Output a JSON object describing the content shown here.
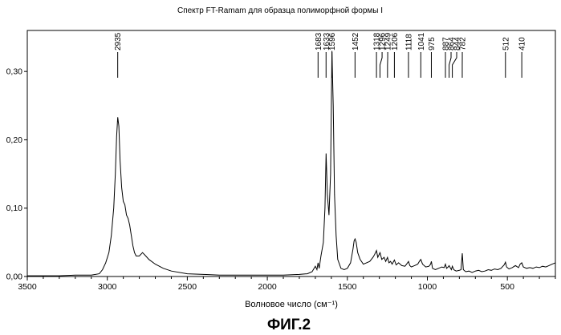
{
  "chart_data": {
    "type": "line",
    "title": "Спектр FT-Ramam для образца полиморфной формы I",
    "xlabel": "Волновое число (см⁻¹)",
    "ylabel": "",
    "xlim": [
      3500,
      200
    ],
    "ylim": [
      0,
      0.36
    ],
    "x_ticks": [
      3500,
      3000,
      2500,
      2000,
      1500,
      1000,
      500
    ],
    "x_tick_labels": [
      "3500",
      "3000",
      "2500",
      "2000",
      "1500",
      "1000",
      "500"
    ],
    "y_ticks": [
      0,
      0.1,
      0.2,
      0.3
    ],
    "y_tick_labels": [
      "0,00",
      "0,10",
      "0,20",
      "0,30"
    ],
    "grid": false,
    "peaks": [
      {
        "x": 2935,
        "label": "2935"
      },
      {
        "x": 1683,
        "label": "1683"
      },
      {
        "x": 1633,
        "label": "1633"
      },
      {
        "x": 1596,
        "label": "1596"
      },
      {
        "x": 1452,
        "label": "1452"
      },
      {
        "x": 1318,
        "label": "1318"
      },
      {
        "x": 1296,
        "label": "1296"
      },
      {
        "x": 1249,
        "label": "1249"
      },
      {
        "x": 1206,
        "label": "1206"
      },
      {
        "x": 1118,
        "label": "1118"
      },
      {
        "x": 1041,
        "label": "1041"
      },
      {
        "x": 975,
        "label": "975"
      },
      {
        "x": 887,
        "label": "887"
      },
      {
        "x": 864,
        "label": "864"
      },
      {
        "x": 844,
        "label": "844"
      },
      {
        "x": 782,
        "label": "782"
      },
      {
        "x": 512,
        "label": "512"
      },
      {
        "x": 410,
        "label": "410"
      }
    ],
    "series": [
      {
        "x": [
          3500,
          3400,
          3300,
          3200,
          3100,
          3050,
          3030,
          3010,
          2990,
          2975,
          2960,
          2950,
          2942,
          2935,
          2928,
          2920,
          2910,
          2900,
          2890,
          2880,
          2870,
          2860,
          2850,
          2840,
          2830,
          2820,
          2800,
          2780,
          2760,
          2740,
          2700,
          2650,
          2600,
          2500,
          2400,
          2300,
          2200,
          2100,
          2000,
          1900,
          1800,
          1750,
          1720,
          1700,
          1690,
          1683,
          1676,
          1665,
          1650,
          1640,
          1633,
          1625,
          1615,
          1605,
          1596,
          1588,
          1580,
          1570,
          1560,
          1540,
          1520,
          1500,
          1480,
          1465,
          1458,
          1452,
          1445,
          1435,
          1420,
          1400,
          1380,
          1360,
          1340,
          1330,
          1318,
          1310,
          1296,
          1285,
          1270,
          1260,
          1249,
          1240,
          1230,
          1220,
          1206,
          1195,
          1180,
          1160,
          1140,
          1130,
          1118,
          1110,
          1100,
          1080,
          1060,
          1050,
          1041,
          1030,
          1010,
          990,
          980,
          975,
          968,
          950,
          930,
          910,
          895,
          887,
          880,
          870,
          864,
          855,
          850,
          844,
          835,
          820,
          800,
          790,
          782,
          775,
          760,
          740,
          720,
          700,
          680,
          660,
          640,
          620,
          600,
          580,
          560,
          540,
          520,
          512,
          505,
          490,
          470,
          450,
          430,
          420,
          410,
          400,
          380,
          360,
          340,
          320,
          300,
          280,
          260,
          240,
          220,
          200
        ],
        "values": [
          0.001,
          0.001,
          0.001,
          0.002,
          0.002,
          0.004,
          0.01,
          0.02,
          0.035,
          0.06,
          0.1,
          0.15,
          0.205,
          0.233,
          0.22,
          0.17,
          0.13,
          0.11,
          0.105,
          0.09,
          0.085,
          0.075,
          0.06,
          0.045,
          0.035,
          0.03,
          0.03,
          0.035,
          0.03,
          0.025,
          0.018,
          0.012,
          0.008,
          0.004,
          0.003,
          0.002,
          0.002,
          0.002,
          0.002,
          0.002,
          0.003,
          0.004,
          0.007,
          0.015,
          0.01,
          0.02,
          0.012,
          0.03,
          0.05,
          0.1,
          0.18,
          0.12,
          0.09,
          0.15,
          0.33,
          0.25,
          0.12,
          0.06,
          0.025,
          0.012,
          0.01,
          0.012,
          0.02,
          0.04,
          0.052,
          0.055,
          0.05,
          0.035,
          0.025,
          0.018,
          0.02,
          0.022,
          0.028,
          0.032,
          0.038,
          0.028,
          0.035,
          0.025,
          0.028,
          0.022,
          0.028,
          0.02,
          0.022,
          0.018,
          0.024,
          0.017,
          0.02,
          0.016,
          0.015,
          0.018,
          0.022,
          0.016,
          0.014,
          0.016,
          0.018,
          0.022,
          0.025,
          0.018,
          0.014,
          0.015,
          0.018,
          0.022,
          0.012,
          0.01,
          0.012,
          0.014,
          0.013,
          0.018,
          0.012,
          0.014,
          0.016,
          0.012,
          0.01,
          0.015,
          0.01,
          0.008,
          0.009,
          0.01,
          0.034,
          0.01,
          0.007,
          0.008,
          0.006,
          0.008,
          0.009,
          0.007,
          0.008,
          0.01,
          0.009,
          0.011,
          0.01,
          0.012,
          0.017,
          0.021,
          0.014,
          0.011,
          0.013,
          0.016,
          0.013,
          0.018,
          0.02,
          0.014,
          0.012,
          0.013,
          0.012,
          0.014,
          0.013,
          0.015,
          0.014,
          0.016,
          0.018,
          0.02
        ]
      }
    ]
  },
  "figure_caption": "ФИГ.2"
}
